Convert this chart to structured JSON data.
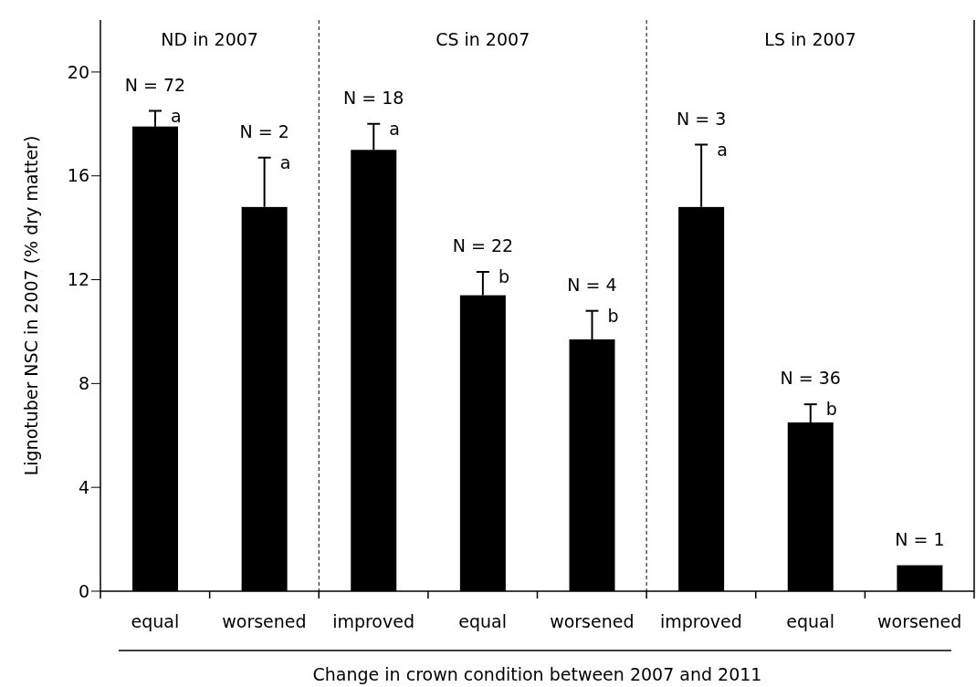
{
  "chart_data": {
    "type": "bar",
    "ylabel": "Lignotuber NSC in 2007 (% dry matter)",
    "xlabel": "Change in crown condition between 2007 and 2011",
    "categories": [
      "equal",
      "worsened",
      "improved",
      "equal",
      "worsened",
      "improved",
      "equal",
      "worsened"
    ],
    "values": [
      17.9,
      14.8,
      17.0,
      11.4,
      9.7,
      14.8,
      6.5,
      1.0
    ],
    "errors": [
      0.6,
      1.9,
      1.0,
      0.9,
      1.1,
      2.4,
      0.7,
      null
    ],
    "color": "#000000",
    "ylim": [
      0,
      22
    ],
    "yticks": [
      0,
      4,
      8,
      12,
      16,
      20
    ],
    "grid": false,
    "legend": false,
    "annotations": [
      "ND in 2007",
      "CS in 2007",
      "LS in 2007",
      "N = 72",
      "a",
      "N = 2",
      "a",
      "N = 18",
      "a",
      "N = 22",
      "b",
      "N = 4",
      "b",
      "N = 3",
      "a",
      "N = 36",
      "b",
      "N = 1"
    ]
  }
}
